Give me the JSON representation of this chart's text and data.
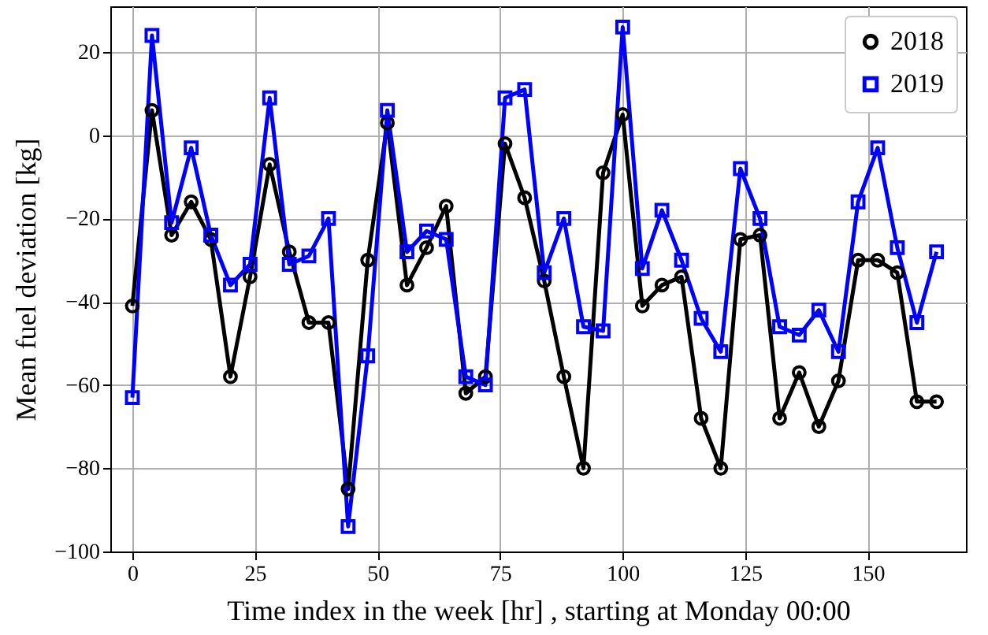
{
  "chart_data": {
    "type": "line",
    "xlabel": "Time index in the week [hr] , starting at Monday 00:00",
    "ylabel": "Mean fuel deviation [kg]",
    "x": [
      0,
      4,
      8,
      12,
      16,
      20,
      24,
      28,
      32,
      36,
      40,
      44,
      48,
      52,
      56,
      60,
      64,
      68,
      72,
      76,
      80,
      84,
      88,
      92,
      96,
      100,
      104,
      108,
      112,
      116,
      120,
      124,
      128,
      132,
      136,
      140,
      144,
      148,
      152,
      156,
      160,
      164
    ],
    "series": [
      {
        "name": "2018",
        "color": "#000000",
        "marker": "circle",
        "values": [
          -41,
          6,
          -24,
          -16,
          -25,
          -58,
          -34,
          -7,
          -28,
          -45,
          -45,
          -85,
          -30,
          3,
          -36,
          -27,
          -17,
          -62,
          -58,
          -2,
          -15,
          -35,
          -58,
          -80,
          -9,
          5,
          -41,
          -36,
          -34,
          -68,
          -80,
          -25,
          -24,
          -68,
          -57,
          -70,
          -59,
          -30,
          -30,
          -33,
          -64,
          -64
        ]
      },
      {
        "name": "2019",
        "color": "#0000ff",
        "marker": "square",
        "values": [
          -63,
          24,
          -21,
          -3,
          -24,
          -36,
          -31,
          9,
          -31,
          -29,
          -20,
          -94,
          -53,
          6,
          -28,
          -23,
          -25,
          -58,
          -60,
          9,
          11,
          -33,
          -20,
          -46,
          -47,
          26,
          -32,
          -18,
          -30,
          -44,
          -52,
          -8,
          -20,
          -46,
          -48,
          -42,
          -52,
          -16,
          -3,
          -27,
          -45,
          -28
        ]
      }
    ],
    "xlim": [
      -4.5,
      170
    ],
    "xticks": [
      0,
      25,
      50,
      75,
      100,
      125,
      150
    ],
    "ylim": [
      -100,
      31
    ],
    "yticks": [
      -100,
      -80,
      -60,
      -40,
      -20,
      0,
      20
    ],
    "grid": true,
    "legend": "top right",
    "line_style": "solid"
  }
}
